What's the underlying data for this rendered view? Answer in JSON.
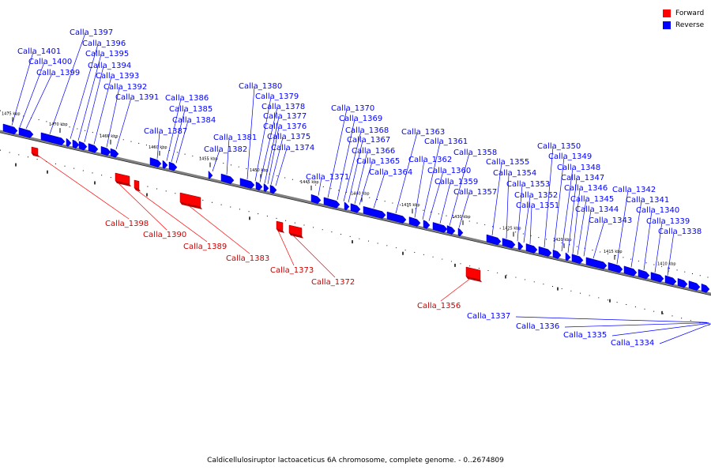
{
  "caption": "Caldicellulosiruptor lactoaceticus 6A chromosome, complete genome. - 0..2674809",
  "legend": [
    {
      "label": "Forward",
      "color": "#ff0000"
    },
    {
      "label": "Reverse",
      "color": "#0000ff"
    }
  ],
  "colors": {
    "forward": "#ff0000",
    "reverse": "#0000ff",
    "axis": "#808080"
  },
  "scale": {
    "ticks_kbp": [
      1475,
      1470,
      1465,
      1460,
      1455,
      1450,
      1445,
      1440,
      1435,
      1430,
      1425,
      1420,
      1415,
      1410
    ],
    "tick_labels": [
      "1475 kbp",
      "1470 kbp",
      "1465 kbp",
      "1460 kbp",
      "1455 kbp",
      "1450 kbp",
      "1445 kbp",
      "1440 kbp",
      "1435 kbp",
      "1430 kbp",
      "1425 kbp",
      "1420 kbp",
      "1415 kbp",
      "1410 kbp"
    ]
  },
  "genes": {
    "reverse": [
      "Calla_1401",
      "Calla_1400",
      "Calla_1399",
      "Calla_1397",
      "Calla_1396",
      "Calla_1395",
      "Calla_1394",
      "Calla_1393",
      "Calla_1392",
      "Calla_1391",
      "Calla_1387",
      "Calla_1386",
      "Calla_1385",
      "Calla_1384",
      "Calla_1382",
      "Calla_1381",
      "Calla_1380",
      "Calla_1379",
      "Calla_1378",
      "Calla_1377",
      "Calla_1376",
      "Calla_1375",
      "Calla_1374",
      "Calla_1371",
      "Calla_1370",
      "Calla_1369",
      "Calla_1368",
      "Calla_1367",
      "Calla_1366",
      "Calla_1365",
      "Calla_1364",
      "Calla_1363",
      "Calla_1362",
      "Calla_1361",
      "Calla_1360",
      "Calla_1359",
      "Calla_1358",
      "Calla_1357",
      "Calla_1355",
      "Calla_1354",
      "Calla_1353",
      "Calla_1352",
      "Calla_1351",
      "Calla_1350",
      "Calla_1349",
      "Calla_1348",
      "Calla_1347",
      "Calla_1346",
      "Calla_1345",
      "Calla_1344",
      "Calla_1343",
      "Calla_1342",
      "Calla_1341",
      "Calla_1340",
      "Calla_1339",
      "Calla_1338",
      "Calla_1337",
      "Calla_1336",
      "Calla_1335",
      "Calla_1334"
    ],
    "forward": [
      "Calla_1398",
      "Calla_1390",
      "Calla_1389",
      "Calla_1383",
      "Calla_1373",
      "Calla_1372",
      "Calla_1356"
    ]
  }
}
